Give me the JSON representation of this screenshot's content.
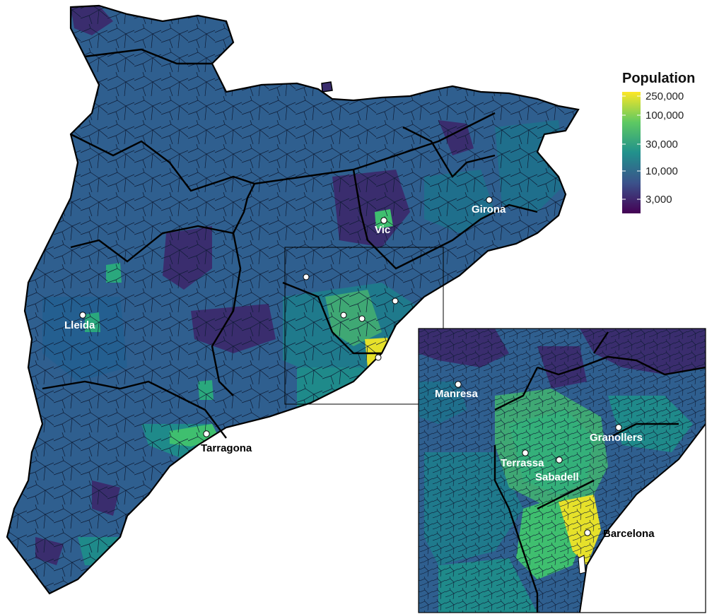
{
  "legend": {
    "title": "Population",
    "ticks": [
      "250,000",
      "100,000",
      "30,000",
      "10,000",
      "3,000"
    ],
    "colors": [
      "#440154",
      "#3b528b",
      "#21918c",
      "#5ec962",
      "#fde725"
    ]
  },
  "colors": {
    "base_region": "#2f5f8f",
    "dark_region": "#3a2d6e",
    "teal_region": "#1f8a8a",
    "green_region": "#3fbf6f",
    "yellow_region": "#e6e12a",
    "border": "#000000",
    "marker": "#ffffff"
  },
  "cities_main": [
    {
      "name": "Lleida",
      "label_color": "white"
    },
    {
      "name": "Vic",
      "label_color": "white"
    },
    {
      "name": "Girona",
      "label_color": "white"
    },
    {
      "name": "Tarragona",
      "label_color": "black"
    }
  ],
  "cities_inset": [
    {
      "name": "Manresa",
      "label_color": "white"
    },
    {
      "name": "Granollers",
      "label_color": "white"
    },
    {
      "name": "Terrassa",
      "label_color": "white"
    },
    {
      "name": "Sabadell",
      "label_color": "white"
    },
    {
      "name": "Barcelona",
      "label_color": "black"
    }
  ]
}
